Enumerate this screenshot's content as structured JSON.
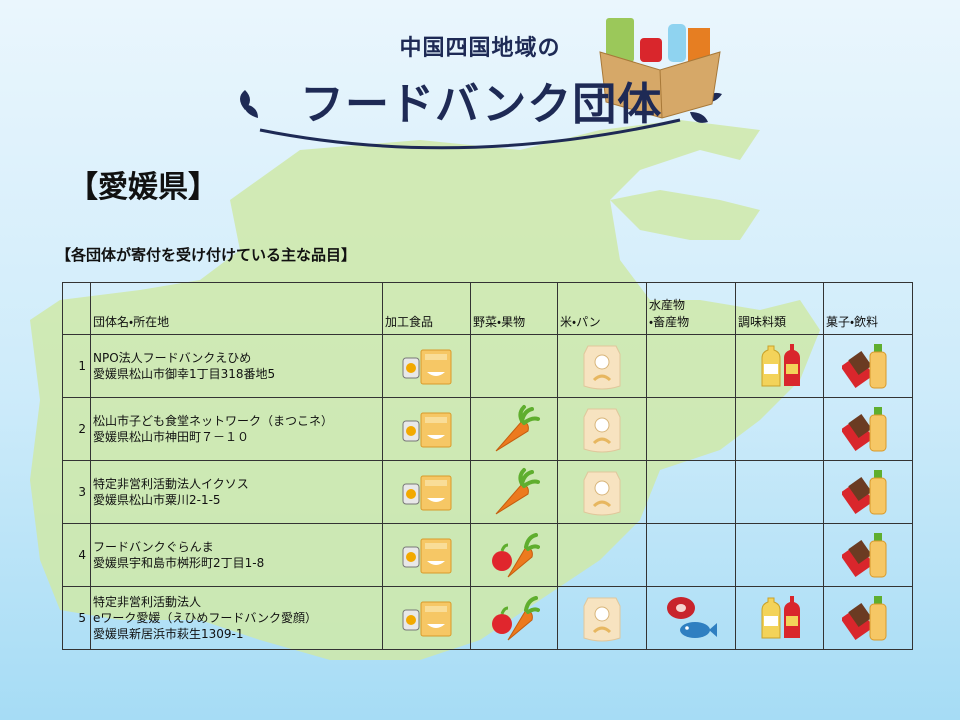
{
  "header": {
    "subtitle": "中国四国地域の",
    "title": "フードバンク団体"
  },
  "section": "【愛媛県】",
  "caption": "【各団体が寄付を受け付けている主な品目】",
  "table": {
    "name_header": "団体名・所在地",
    "item_headers": [
      "加工食品",
      "野菜・果物",
      "米・パン",
      "水産物\n・畜産物",
      "調味料類",
      "菓子・飲料"
    ],
    "rows": [
      {
        "no": 1,
        "lines": [
          "NPO法人フードバンクえひめ",
          "愛媛県松山市御幸1丁目318番地5"
        ]
      },
      {
        "no": 2,
        "lines": [
          "松山市子ども食堂ネットワーク（まつこネ）",
          "愛媛県松山市神田町７－１０"
        ]
      },
      {
        "no": 3,
        "lines": [
          "特定非営利活動法人イクソス",
          "愛媛県松山市粟川2-1-5"
        ]
      },
      {
        "no": 4,
        "lines": [
          "フードバンクぐらんま",
          "愛媛県宇和島市桝形町2丁目1-8"
        ]
      },
      {
        "no": 5,
        "lines": [
          "特定非営利活動法人",
          "eワーク愛媛（えひめフードバンク愛顔）",
          "愛媛県新居浜市萩生1309-1"
        ]
      }
    ]
  }
}
